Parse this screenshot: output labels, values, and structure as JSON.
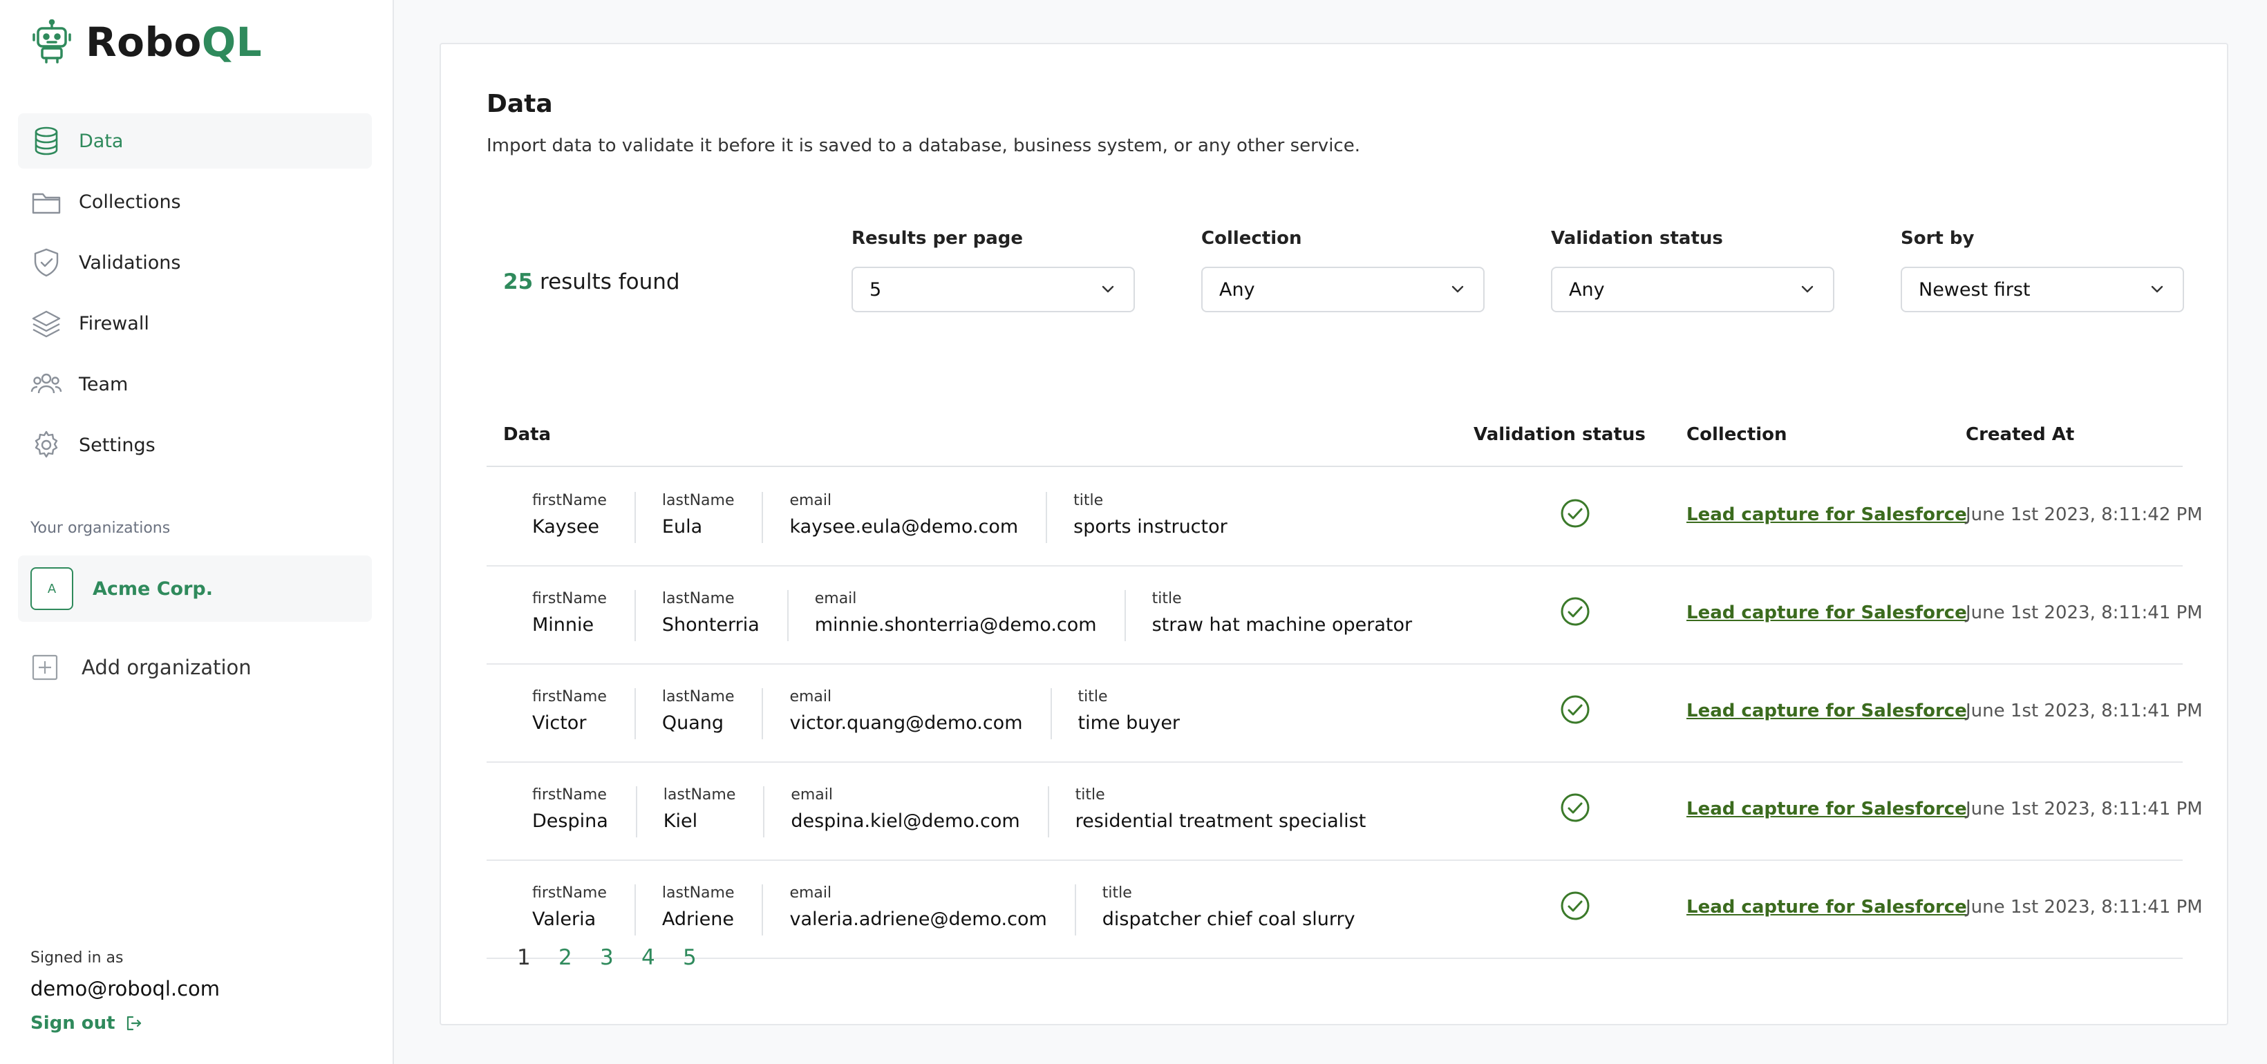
{
  "app": {
    "name_main": "Robo",
    "name_accent": "QL"
  },
  "colors": {
    "accent": "#2f8a5c",
    "link": "#3b6b1e",
    "sidebar_bg": "#ffffff",
    "page_bg": "#f8f9fa"
  },
  "sidebar": {
    "items": [
      {
        "label": "Data",
        "icon": "database-icon",
        "active": true
      },
      {
        "label": "Collections",
        "icon": "folder-icon",
        "active": false
      },
      {
        "label": "Validations",
        "icon": "shield-check-icon",
        "active": false
      },
      {
        "label": "Firewall",
        "icon": "layers-icon",
        "active": false
      },
      {
        "label": "Team",
        "icon": "users-icon",
        "active": false
      },
      {
        "label": "Settings",
        "icon": "gear-icon",
        "active": false
      }
    ],
    "org_heading": "Your organizations",
    "org": {
      "avatar_letter": "A",
      "name": "Acme Corp."
    },
    "add_org_label": "Add organization",
    "signed_in_label": "Signed in as",
    "signed_in_email": "demo@roboql.com",
    "sign_out_label": "Sign out"
  },
  "main": {
    "title": "Data",
    "subtitle": "Import data to validate it before it is saved to a database, business system, or any other service.",
    "results_count": "25",
    "results_suffix": "results found",
    "filters": [
      {
        "label": "Results per page",
        "value": "5"
      },
      {
        "label": "Collection",
        "value": "Any"
      },
      {
        "label": "Validation status",
        "value": "Any"
      },
      {
        "label": "Sort by",
        "value": "Newest first"
      }
    ],
    "columns": {
      "data": "Data",
      "status": "Validation status",
      "collection": "Collection",
      "created": "Created At"
    },
    "rows": [
      {
        "firstName": "Kaysee",
        "lastName": "Eula",
        "email": "kaysee.eula@demo.com",
        "title": "sports instructor",
        "status": "valid",
        "collection": "Lead capture for Salesforce",
        "created": "June 1st 2023, 8:11:42 PM"
      },
      {
        "firstName": "Minnie",
        "lastName": "Shonterria",
        "email": "minnie.shonterria@demo.com",
        "title": "straw hat machine operator",
        "status": "valid",
        "collection": "Lead capture for Salesforce",
        "created": "June 1st 2023, 8:11:41 PM"
      },
      {
        "firstName": "Victor",
        "lastName": "Quang",
        "email": "victor.quang@demo.com",
        "title": "time buyer",
        "status": "valid",
        "collection": "Lead capture for Salesforce",
        "created": "June 1st 2023, 8:11:41 PM"
      },
      {
        "firstName": "Despina",
        "lastName": "Kiel",
        "email": "despina.kiel@demo.com",
        "title": "residential treatment specialist",
        "status": "valid",
        "collection": "Lead capture for Salesforce",
        "created": "June 1st 2023, 8:11:41 PM"
      },
      {
        "firstName": "Valeria",
        "lastName": "Adriene",
        "email": "valeria.adriene@demo.com",
        "title": "dispatcher chief coal slurry",
        "status": "valid",
        "collection": "Lead capture for Salesforce",
        "created": "June 1st 2023, 8:11:41 PM"
      }
    ],
    "field_keys": {
      "firstName": "firstName",
      "lastName": "lastName",
      "email": "email",
      "title": "title"
    },
    "pages": [
      "1",
      "2",
      "3",
      "4",
      "5"
    ],
    "current_page": "1"
  }
}
